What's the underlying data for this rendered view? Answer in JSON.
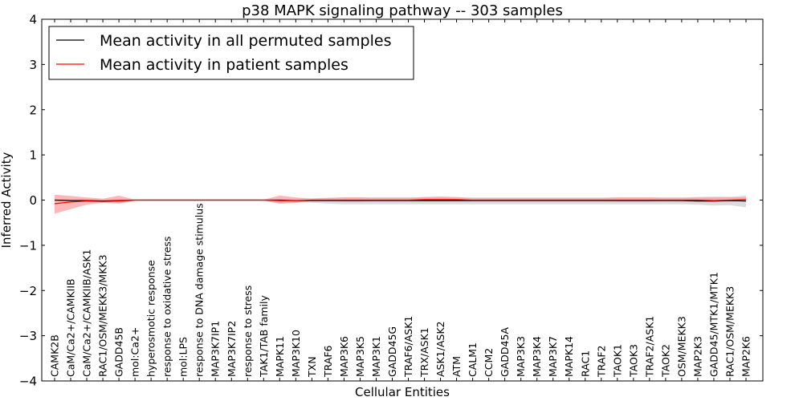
{
  "chart_data": {
    "type": "line",
    "title": "p38 MAPK signaling pathway -- 303 samples",
    "xlabel": "Cellular Entities",
    "ylabel": "Inferred Activity",
    "ylim": [
      -4,
      4
    ],
    "yticks": [
      -4,
      -3,
      -2,
      -1,
      0,
      1,
      2,
      3,
      4
    ],
    "ytick_labels": [
      "−4",
      "−3",
      "−2",
      "−1",
      "0",
      "1",
      "2",
      "3",
      "4"
    ],
    "grid": false,
    "legend_position": "top-left",
    "categories": [
      "CAMK2B",
      "CaM/Ca2+/CAMKIIB",
      "CaM/Ca2+/CAMKIIB/ASK1",
      "RAC1/OSM/MEKK3/MKK3",
      "GADD45B",
      "mol:Ca2+",
      "hyperosmotic response",
      "response to oxidative stress",
      "mol:LPS",
      "response to DNA damage stimulus",
      "MAP3K7IP1",
      "MAP3K7IP2",
      "response to stress",
      "TAK1/TAB family",
      "MAPK11",
      "MAP3K10",
      "TXN",
      "TRAF6",
      "MAP3K6",
      "MAP3K5",
      "MAP3K1",
      "GADD45G",
      "TRAF6/ASK1",
      "TRX/ASK1",
      "ASK1/ASK2",
      "ATM",
      "CALM1",
      "CCM2",
      "GADD45A",
      "MAP3K3",
      "MAP3K4",
      "MAP3K7",
      "MAPK14",
      "RAC1",
      "TRAF2",
      "TAOK1",
      "TAOK3",
      "TRAF2/ASK1",
      "TAOK2",
      "OSM/MEKK3",
      "MAP2K3",
      "GADD45/MTK1/MTK1",
      "RAC1/OSM/MEKK3",
      "MAP2K6"
    ],
    "series": [
      {
        "name": "Mean activity in all permuted samples",
        "color": "#000000",
        "band_color": "#bfbfbf",
        "values": [
          0.0,
          -0.01,
          -0.01,
          -0.02,
          -0.01,
          0.0,
          0.0,
          0.0,
          0.0,
          0.0,
          0.0,
          0.0,
          0.0,
          0.0,
          0.0,
          -0.01,
          -0.01,
          -0.01,
          -0.01,
          -0.01,
          -0.01,
          -0.01,
          -0.01,
          -0.01,
          -0.01,
          -0.01,
          -0.01,
          -0.01,
          -0.01,
          -0.01,
          -0.01,
          -0.01,
          -0.01,
          -0.01,
          -0.01,
          -0.01,
          -0.01,
          -0.01,
          -0.01,
          -0.01,
          -0.02,
          -0.02,
          -0.01,
          -0.02
        ],
        "lower": [
          -0.02,
          -0.03,
          -0.04,
          -0.06,
          -0.04,
          -0.01,
          -0.01,
          -0.01,
          -0.01,
          -0.01,
          -0.01,
          -0.01,
          -0.01,
          -0.01,
          -0.02,
          -0.04,
          -0.06,
          -0.08,
          -0.09,
          -0.09,
          -0.09,
          -0.09,
          -0.09,
          -0.09,
          -0.09,
          -0.09,
          -0.09,
          -0.09,
          -0.09,
          -0.09,
          -0.09,
          -0.09,
          -0.09,
          -0.09,
          -0.09,
          -0.09,
          -0.09,
          -0.09,
          -0.09,
          -0.09,
          -0.1,
          -0.12,
          -0.11,
          -0.16
        ],
        "upper": [
          0.02,
          0.02,
          0.02,
          0.02,
          0.02,
          0.01,
          0.01,
          0.01,
          0.01,
          0.01,
          0.01,
          0.01,
          0.01,
          0.01,
          0.02,
          0.03,
          0.04,
          0.05,
          0.06,
          0.06,
          0.06,
          0.06,
          0.06,
          0.06,
          0.06,
          0.06,
          0.06,
          0.06,
          0.06,
          0.06,
          0.06,
          0.06,
          0.06,
          0.06,
          0.06,
          0.06,
          0.06,
          0.06,
          0.06,
          0.06,
          0.07,
          0.08,
          0.07,
          0.1
        ]
      },
      {
        "name": "Mean activity in patient samples",
        "color": "#ff0000",
        "band_color": "#ff9999",
        "values": [
          -0.08,
          -0.04,
          -0.02,
          -0.03,
          -0.02,
          0.0,
          0.0,
          0.0,
          0.0,
          0.0,
          0.0,
          0.0,
          0.0,
          0.0,
          -0.01,
          -0.01,
          0.0,
          0.0,
          0.0,
          0.0,
          0.0,
          0.0,
          0.0,
          0.01,
          0.01,
          0.01,
          0.0,
          0.0,
          0.0,
          0.0,
          0.0,
          0.0,
          0.0,
          0.0,
          0.0,
          0.0,
          0.0,
          0.0,
          0.0,
          0.0,
          0.0,
          -0.01,
          0.0,
          0.01
        ],
        "lower": [
          -0.3,
          -0.2,
          -0.1,
          -0.06,
          -0.08,
          -0.01,
          -0.01,
          -0.01,
          -0.01,
          -0.01,
          -0.01,
          -0.01,
          -0.01,
          -0.01,
          -0.08,
          -0.06,
          -0.02,
          -0.02,
          -0.03,
          -0.03,
          -0.02,
          -0.02,
          -0.02,
          -0.02,
          -0.02,
          -0.02,
          -0.02,
          -0.02,
          -0.02,
          -0.02,
          -0.02,
          -0.02,
          -0.02,
          -0.02,
          -0.02,
          -0.03,
          -0.03,
          -0.03,
          -0.02,
          -0.03,
          -0.03,
          -0.05,
          -0.03,
          -0.02
        ],
        "upper": [
          0.12,
          0.09,
          0.06,
          0.03,
          0.1,
          0.01,
          0.01,
          0.01,
          0.01,
          0.01,
          0.01,
          0.01,
          0.01,
          0.01,
          0.1,
          0.06,
          0.03,
          0.05,
          0.06,
          0.06,
          0.05,
          0.05,
          0.05,
          0.07,
          0.08,
          0.07,
          0.04,
          0.04,
          0.04,
          0.04,
          0.04,
          0.04,
          0.04,
          0.04,
          0.04,
          0.06,
          0.06,
          0.06,
          0.05,
          0.05,
          0.06,
          0.06,
          0.07,
          0.06
        ]
      }
    ]
  }
}
